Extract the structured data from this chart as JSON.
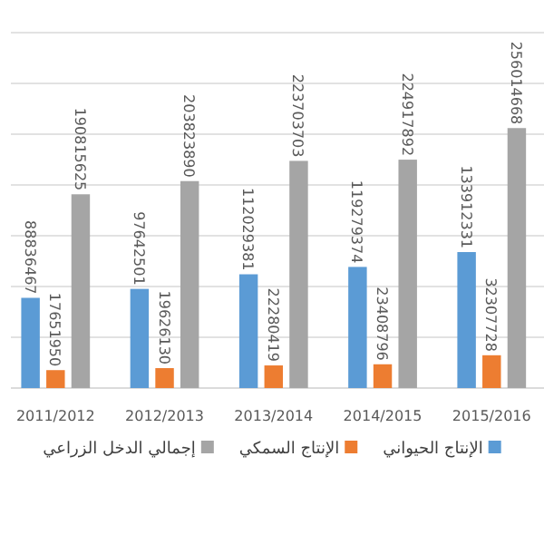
{
  "chart_data": {
    "type": "bar",
    "categories": [
      "2011/2012",
      "2012/2013",
      "2013/2014",
      "2014/2015",
      "2015/2016"
    ],
    "series": [
      {
        "name": "الإنتاج الحيواني",
        "color": "#5b9bd5",
        "values": [
          88836467,
          97642501,
          112029381,
          119279374,
          133912331
        ]
      },
      {
        "name": "الإنتاج السمكي",
        "color": "#ed7d31",
        "values": [
          17651950,
          19626130,
          22280419,
          23408796,
          32307728
        ]
      },
      {
        "name": "إجمالي الدخل الزراعي",
        "color": "#a5a5a5",
        "values": [
          190815625,
          203823890,
          223703703,
          224917892,
          256014668
        ]
      }
    ],
    "ylim": [
      0,
      350000000
    ],
    "yticks": [
      {
        "value": 0,
        "label": null
      },
      {
        "value": 50000000,
        "label": null
      },
      {
        "value": 100000000,
        "label": null
      },
      {
        "value": 150000000,
        "label": null
      },
      {
        "value": 200000000,
        "label": null
      },
      {
        "value": 250000000,
        "label": null
      },
      {
        "value": 300000000,
        "label": null
      },
      {
        "value": 350000000,
        "label": null
      }
    ],
    "tick_labels": "x",
    "grid": "y",
    "legend": "bottom",
    "data_labels": true
  }
}
